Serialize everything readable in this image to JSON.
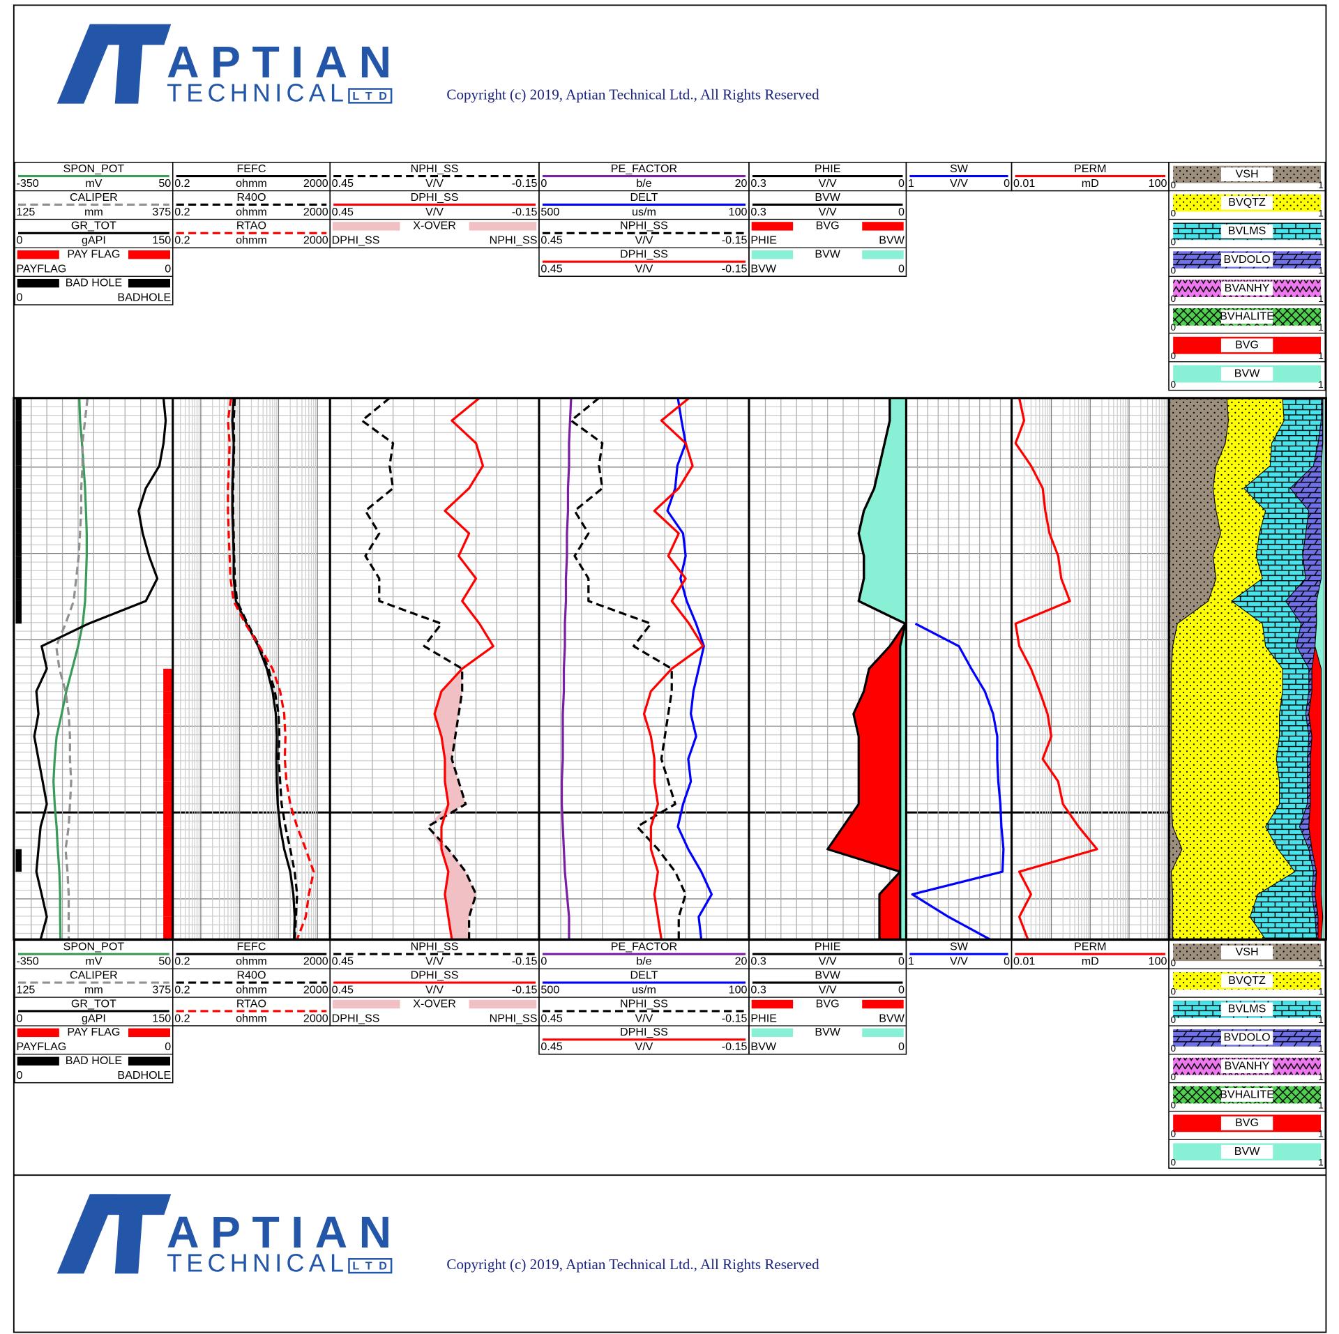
{
  "header": {
    "company": "APTIAN",
    "company_sub": "TECHNICAL",
    "company_suffix": "LTD",
    "copyright": "Copyright (c) 2019, Aptian Technical Ltd., All Rights Reserved"
  },
  "chart_data": [
    {
      "type": "log-track",
      "log": false,
      "grid": true,
      "curves": [
        {
          "name": "SPON_POT",
          "unit": "mV",
          "left": -350,
          "right": 50,
          "color": "#3a9a5a",
          "style": "solid",
          "values": [
            -187,
            -185,
            -180,
            -176,
            -172,
            -170,
            -168,
            -168,
            -170,
            -172,
            -178,
            -190,
            -205,
            -220,
            -232,
            -245,
            -250,
            -253,
            -250,
            -245,
            -242,
            -238,
            -236,
            -236,
            -235
          ]
        },
        {
          "name": "CALIPER",
          "unit": "mm",
          "left": 125,
          "right": 375,
          "color": "#909090",
          "style": "dashed",
          "values": [
            240,
            236,
            232,
            232,
            230,
            230,
            228,
            226,
            222,
            218,
            205,
            190,
            195,
            205,
            210,
            212,
            212,
            214,
            212,
            210,
            205,
            208,
            210,
            210,
            210
          ]
        },
        {
          "name": "GR_TOT",
          "unit": "gAPI",
          "left": 0,
          "right": 150,
          "color": "#000000",
          "style": "solid",
          "values": [
            142,
            144,
            142,
            138,
            125,
            118,
            122,
            128,
            136,
            125,
            70,
            25,
            30,
            20,
            22,
            18,
            22,
            26,
            30,
            24,
            22,
            20,
            25,
            30,
            24
          ]
        },
        {
          "name": "PAY FLAG",
          "left": "PAYFLAG",
          "right": 0,
          "color": "#ff0000",
          "style": "flag",
          "side": "right",
          "values": [
            0,
            0,
            0,
            0,
            0,
            0,
            0,
            0,
            0,
            0,
            0,
            0,
            1,
            1,
            1,
            1,
            1,
            1,
            1,
            1,
            1,
            1,
            1,
            1,
            1
          ]
        },
        {
          "name": "BAD HOLE",
          "left": 0,
          "right": "BADHOLE",
          "color": "#000000",
          "style": "flag",
          "side": "left",
          "values": [
            1,
            1,
            1,
            1,
            1,
            1,
            1,
            1,
            1,
            1,
            0,
            0,
            0,
            0,
            0,
            0,
            0,
            0,
            0,
            0,
            1,
            0,
            0,
            0,
            0
          ]
        }
      ]
    },
    {
      "type": "log-track",
      "log": true,
      "grid": true,
      "curves": [
        {
          "name": "FEFC",
          "unit": "ohmm",
          "left": 0.2,
          "right": 2000,
          "color": "#000000",
          "style": "solid",
          "values": [
            7,
            6.5,
            7,
            6.8,
            6.5,
            6.5,
            6.8,
            7,
            7,
            8,
            15,
            30,
            50,
            70,
            85,
            90,
            88,
            90,
            95,
            110,
            140,
            200,
            240,
            260,
            250
          ]
        },
        {
          "name": "R40O",
          "unit": "ohmm",
          "left": 0.2,
          "right": 2000,
          "color": "#000000",
          "style": "dashed",
          "values": [
            7.5,
            7,
            7.2,
            7,
            6.8,
            6.8,
            7,
            7.2,
            7.5,
            8.5,
            16,
            32,
            55,
            80,
            100,
            105,
            100,
            110,
            120,
            150,
            200,
            260,
            300,
            280,
            260
          ]
        },
        {
          "name": "RTAO",
          "unit": "ohmm",
          "left": 0.2,
          "right": 2000,
          "color": "#ff0000",
          "style": "dashed",
          "values": [
            6,
            5,
            5.5,
            5.3,
            5,
            5,
            5.2,
            5.5,
            5.8,
            7,
            14,
            32,
            70,
            110,
            140,
            150,
            145,
            160,
            200,
            300,
            500,
            800,
            600,
            500,
            300
          ]
        }
      ]
    },
    {
      "type": "log-track",
      "log": false,
      "grid": true,
      "curves": [
        {
          "name": "NPHI_SS",
          "unit": "V/V",
          "left": 0.45,
          "right": -0.15,
          "color": "#000000",
          "style": "dashed",
          "values": [
            0.28,
            0.36,
            0.27,
            0.28,
            0.27,
            0.35,
            0.31,
            0.35,
            0.31,
            0.31,
            0.13,
            0.18,
            0.07,
            0.07,
            0.08,
            0.09,
            0.1,
            0.08,
            0.06,
            0.17,
            0.11,
            0.06,
            0.03,
            0.05,
            0.05
          ]
        },
        {
          "name": "DPHI_SS",
          "unit": "V/V",
          "left": 0.45,
          "right": -0.15,
          "color": "#ff0000",
          "style": "solid",
          "values": [
            0.02,
            0.1,
            0.03,
            0.01,
            0.05,
            0.12,
            0.05,
            0.08,
            0.03,
            0.07,
            0.02,
            -0.02,
            0.07,
            0.13,
            0.15,
            0.13,
            0.12,
            0.12,
            0.11,
            0.13,
            0.13,
            0.11,
            0.12,
            0.11,
            0.1
          ]
        },
        {
          "name": "X-OVER",
          "left": "DPHI_SS",
          "right": "NPHI_SS",
          "color": "#f0c0c4",
          "style": "fill"
        }
      ]
    },
    {
      "type": "log-track",
      "log": false,
      "grid": true,
      "curves": [
        {
          "name": "PE_FACTOR",
          "unit": "b/e",
          "left": 0,
          "right": 20,
          "color": "#7b1fa2",
          "style": "solid",
          "values": [
            3,
            2.9,
            2.8,
            2.8,
            2.7,
            2.7,
            2.6,
            2.6,
            2.5,
            2.5,
            2.4,
            2.4,
            2.3,
            2.3,
            2.2,
            2.2,
            2.2,
            2.1,
            2.1,
            2.2,
            2.3,
            2.4,
            2.6,
            2.8,
            2.8
          ]
        },
        {
          "name": "DELT",
          "unit": "us/m",
          "left": 500,
          "right": 100,
          "color": "#0000ff",
          "style": "solid",
          "values": [
            235,
            228,
            220,
            236,
            240,
            255,
            225,
            220,
            230,
            218,
            200,
            185,
            195,
            205,
            210,
            200,
            215,
            210,
            225,
            235,
            215,
            190,
            170,
            195,
            190
          ]
        },
        {
          "name": "NPHI_SS",
          "unit": "V/V",
          "left": 0.45,
          "right": -0.15,
          "color": "#000000",
          "style": "dashed"
        },
        {
          "name": "DPHI_SS",
          "unit": "V/V",
          "left": 0.45,
          "right": -0.15,
          "color": "#ff0000",
          "style": "solid"
        }
      ]
    },
    {
      "type": "log-track",
      "log": false,
      "grid": true,
      "curves": [
        {
          "name": "PHIE",
          "unit": "V/V",
          "left": 0.3,
          "right": 0,
          "color": "#000000",
          "style": "solid",
          "values": [
            0.03,
            0.03,
            0.04,
            0.05,
            0.06,
            0.08,
            0.09,
            0.08,
            0.08,
            0.09,
            0,
            0.03,
            0.07,
            0.08,
            0.1,
            0.09,
            0.09,
            0.09,
            0.09,
            0.12,
            0.15,
            0.01,
            0.05,
            0.05,
            0.05
          ]
        },
        {
          "name": "BVW",
          "unit": "V/V",
          "left": 0.3,
          "right": 0,
          "color": "#000000",
          "style": "solid",
          "values": [
            0.03,
            0.03,
            0.04,
            0.05,
            0.06,
            0.08,
            0.09,
            0.08,
            0.08,
            0.09,
            0,
            0.01,
            0.01,
            0.01,
            0.01,
            0.01,
            0.01,
            0.01,
            0.01,
            0.01,
            0.01,
            0.01,
            0.01,
            0.01,
            0.01
          ]
        },
        {
          "name": "BVG",
          "left": "PHIE",
          "right": "BVW",
          "color": "#ff0000",
          "style": "fill"
        },
        {
          "name": "BVW",
          "left": "BVW",
          "right": 0,
          "color": "#88f0d4",
          "style": "fill"
        }
      ]
    },
    {
      "type": "log-track",
      "log": false,
      "grid": true,
      "curves": [
        {
          "name": "SW",
          "unit": "V/V",
          "left": 1,
          "right": 0,
          "color": "#0000ff",
          "style": "solid",
          "values": [
            null,
            null,
            null,
            null,
            null,
            null,
            null,
            null,
            null,
            null,
            0.92,
            0.5,
            0.38,
            0.25,
            0.17,
            0.13,
            0.13,
            0.12,
            0.1,
            0.09,
            0.07,
            0.08,
            0.95,
            0.6,
            0.2
          ]
        }
      ]
    },
    {
      "type": "log-track",
      "log": true,
      "grid": true,
      "curves": [
        {
          "name": "PERM",
          "unit": "mD",
          "left": 0.01,
          "right": 100,
          "color": "#ff0000",
          "style": "solid",
          "values": [
            0.015,
            0.02,
            0.012,
            0.03,
            0.06,
            0.07,
            0.09,
            0.15,
            0.18,
            0.3,
            0.012,
            0.015,
            0.03,
            0.05,
            0.08,
            0.1,
            0.06,
            0.15,
            0.2,
            0.5,
            1.5,
            0.015,
            0.03,
            0.015,
            0.025
          ]
        }
      ]
    },
    {
      "type": "lithology-track",
      "log": false,
      "grid": false,
      "curves": [
        {
          "name": "VSH",
          "left": 0,
          "right": 1,
          "color": "#9c8f7e",
          "pattern": "dots",
          "style": "area",
          "values": [
            0.37,
            0.38,
            0.36,
            0.3,
            0.28,
            0.3,
            0.33,
            0.28,
            0.3,
            0.25,
            0.05,
            0.02,
            0.01,
            0.01,
            0.01,
            0.01,
            0.01,
            0.01,
            0.01,
            0.02,
            0.08,
            0.01,
            0.02,
            0.02,
            0.02
          ]
        },
        {
          "name": "BVQTZ",
          "left": 0,
          "right": 1,
          "color": "#ffff00",
          "pattern": "dots",
          "style": "area",
          "values": [
            0.36,
            0.36,
            0.3,
            0.35,
            0.2,
            0.32,
            0.25,
            0.28,
            0.3,
            0.15,
            0.55,
            0.6,
            0.72,
            0.72,
            0.7,
            0.7,
            0.68,
            0.7,
            0.7,
            0.6,
            0.62,
            0.8,
            0.55,
            0.5,
            0.6
          ]
        },
        {
          "name": "BVLMS",
          "left": 0,
          "right": 1,
          "color": "#48e4ec",
          "pattern": "brick",
          "style": "area",
          "values": [
            0.25,
            0.24,
            0.3,
            0.28,
            0.3,
            0.28,
            0.3,
            0.3,
            0.28,
            0.35,
            0.25,
            0.2,
            0.17,
            0.17,
            0.17,
            0.19,
            0.2,
            0.18,
            0.18,
            0.22,
            0.2,
            0.12,
            0.35,
            0.42,
            0.33
          ]
        },
        {
          "name": "BVDOLO",
          "left": 0,
          "right": 1,
          "color": "#7070e8",
          "pattern": "slant-brick",
          "style": "area",
          "values": [
            0.01,
            0.01,
            0.03,
            0.05,
            0.2,
            0.08,
            0.1,
            0.12,
            0.1,
            0.2,
            0.1,
            0.12,
            0.02,
            0.02,
            0.02,
            0.02,
            0.02,
            0.02,
            0.02,
            0.06,
            0.02,
            0.02,
            0.02,
            0.02,
            0.01
          ]
        },
        {
          "name": "BVANHY",
          "left": 0,
          "right": 1,
          "color": "#ee78ee",
          "pattern": "zigzag",
          "style": "area",
          "values": [
            0,
            0,
            0,
            0,
            0,
            0,
            0,
            0,
            0,
            0,
            0,
            0,
            0,
            0,
            0,
            0,
            0,
            0,
            0,
            0,
            0,
            0,
            0,
            0,
            0
          ]
        },
        {
          "name": "BVHALITE",
          "left": 0,
          "right": 1,
          "color": "#50d050",
          "pattern": "crosshatch",
          "style": "area",
          "values": [
            0,
            0,
            0,
            0,
            0,
            0,
            0,
            0,
            0,
            0,
            0,
            0,
            0,
            0,
            0,
            0,
            0,
            0,
            0,
            0,
            0,
            0,
            0,
            0,
            0
          ]
        },
        {
          "name": "BVG",
          "left": 0,
          "right": 1,
          "color": "#ff0000",
          "pattern": "solid",
          "style": "area",
          "values": [
            0,
            0,
            0,
            0,
            0,
            0,
            0,
            0,
            0,
            0,
            0,
            0,
            0.06,
            0.06,
            0.08,
            0.06,
            0.07,
            0.07,
            0.07,
            0.08,
            0.06,
            0.03,
            0.04,
            0.03,
            0.02
          ]
        },
        {
          "name": "BVW",
          "left": 0,
          "right": 1,
          "color": "#88f0d4",
          "pattern": "solid",
          "style": "area",
          "values": [
            0.01,
            0.01,
            0.01,
            0.02,
            0.02,
            0.02,
            0.02,
            0.02,
            0.02,
            0.05,
            0.05,
            0.06,
            0.02,
            0.02,
            0.02,
            0.02,
            0.02,
            0.02,
            0.02,
            0.02,
            0.02,
            0.02,
            0.02,
            0.01,
            0.02
          ]
        }
      ]
    }
  ]
}
